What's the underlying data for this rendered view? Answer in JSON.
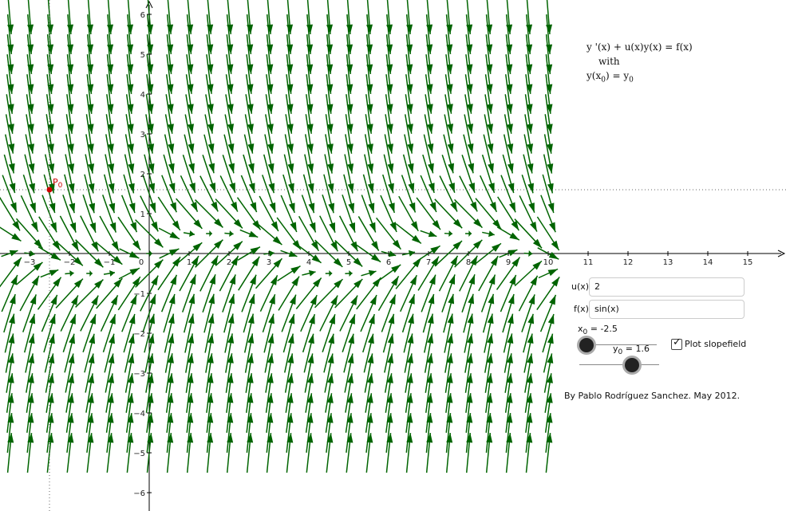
{
  "equation": {
    "line1": "y '(x) + u(x)y(x) = f(x)",
    "line2": "with",
    "line3_pre": "y(x",
    "line3_sub": "0",
    "line3_mid": ") = y",
    "line3_sub2": "0"
  },
  "inputs": {
    "u_label": "u(x)",
    "u_value": "2",
    "f_label": "f(x)",
    "f_value": "sin(x)"
  },
  "sliders": {
    "x0_name": "x",
    "x0_sub": "0",
    "x0_value": " = -2.5",
    "y0_name": "y",
    "y0_sub": "0",
    "y0_value": " = 1.6"
  },
  "checkbox": {
    "label": "Plot slopefield",
    "checked": true
  },
  "credit": "By Pablo Rodríguez Sanchez. May 2012.",
  "point": {
    "name": "P",
    "sub": "0",
    "x": -2.5,
    "y": 1.6
  },
  "colors": {
    "arrow": "#006400",
    "point": "#cc0000",
    "axis": "#000000"
  },
  "plot": {
    "x_ticks": [
      "-3",
      "-2",
      "-1",
      "0",
      "1",
      "2",
      "3",
      "4",
      "5",
      "6",
      "7",
      "8",
      "9",
      "10",
      "11",
      "12",
      "13",
      "14",
      "15"
    ],
    "y_ticks_pos": [
      "1",
      "2",
      "3",
      "4",
      "5",
      "6"
    ],
    "y_ticks_neg": [
      "-1",
      "-2",
      "-3",
      "-4",
      "-5",
      "-6"
    ],
    "field_x_range": [
      -3.5,
      10
    ],
    "field_y_range": [
      -5,
      6
    ],
    "u": 2,
    "f": "sin(x)"
  }
}
